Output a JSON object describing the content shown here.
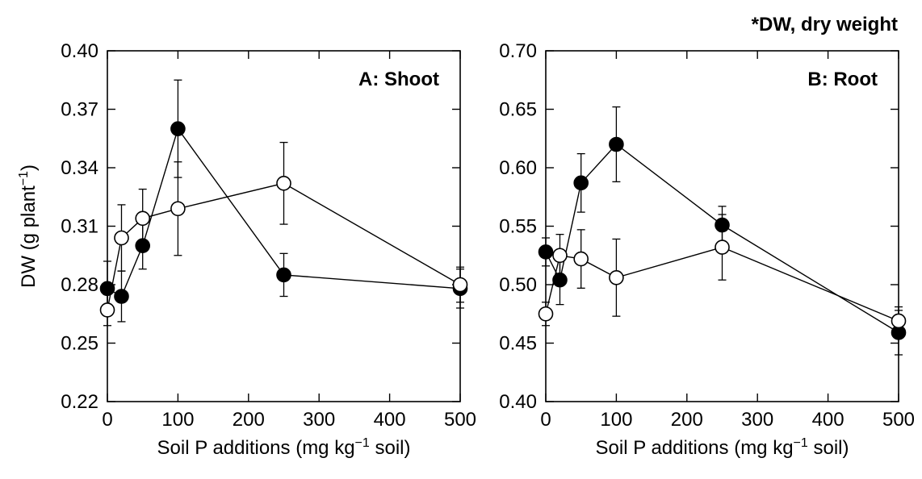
{
  "note": "*DW, dry weight",
  "colors": {
    "axis": "#000000",
    "filled_marker": "#000000",
    "open_marker": "#ffffff"
  },
  "chart_data": [
    {
      "type": "line",
      "panel_label": "A: Shoot",
      "xlabel": "Soil P additions (mg kg−1 soil)",
      "xlabel_main": "Soil P additions (mg kg",
      "xlabel_sup": "−1",
      "xlabel_tail": " soil)",
      "ylabel": "DW (g plant−1)",
      "ylabel_main": "DW (g plant",
      "ylabel_sup": "−1",
      "ylabel_tail": ")",
      "xlim": [
        0,
        500
      ],
      "ylim": [
        0.22,
        0.4
      ],
      "xticks": [
        0,
        100,
        200,
        300,
        400,
        500
      ],
      "yticks": [
        0.22,
        0.25,
        0.28,
        0.31,
        0.34,
        0.37,
        0.4
      ],
      "ytick_labels": [
        "0.22",
        "0.25",
        "0.28",
        "0.31",
        "0.34",
        "0.37",
        "0.40"
      ],
      "series": [
        {
          "marker": "filled",
          "x": [
            0,
            20,
            50,
            100,
            250,
            500
          ],
          "y": [
            0.278,
            0.274,
            0.3,
            0.36,
            0.285,
            0.278
          ],
          "err": [
            0.014,
            0.013,
            0.012,
            0.025,
            0.011,
            0.01
          ]
        },
        {
          "marker": "open",
          "x": [
            0,
            20,
            50,
            100,
            250,
            500
          ],
          "y": [
            0.267,
            0.304,
            0.314,
            0.319,
            0.332,
            0.28
          ],
          "err": [
            0.008,
            0.017,
            0.015,
            0.024,
            0.021,
            0.009
          ]
        }
      ]
    },
    {
      "type": "line",
      "panel_label": "B: Root",
      "xlabel": "Soil P additions (mg kg−1 soil)",
      "xlabel_main": "Soil P additions (mg kg",
      "xlabel_sup": "−1",
      "xlabel_tail": " soil)",
      "ylabel": "",
      "xlim": [
        0,
        500
      ],
      "ylim": [
        0.4,
        0.7
      ],
      "xticks": [
        0,
        100,
        200,
        300,
        400,
        500
      ],
      "yticks": [
        0.4,
        0.45,
        0.5,
        0.55,
        0.6,
        0.65,
        0.7
      ],
      "ytick_labels": [
        "0.40",
        "0.45",
        "0.50",
        "0.55",
        "0.60",
        "0.65",
        "0.70"
      ],
      "series": [
        {
          "marker": "filled",
          "x": [
            0,
            20,
            50,
            100,
            250,
            500
          ],
          "y": [
            0.528,
            0.504,
            0.587,
            0.62,
            0.551,
            0.459
          ],
          "err": [
            0.012,
            0.021,
            0.025,
            0.032,
            0.016,
            0.019
          ]
        },
        {
          "marker": "open",
          "x": [
            0,
            20,
            50,
            100,
            250,
            500
          ],
          "y": [
            0.475,
            0.525,
            0.522,
            0.506,
            0.532,
            0.469
          ],
          "err": [
            0.01,
            0.018,
            0.025,
            0.033,
            0.028,
            0.012
          ]
        }
      ]
    }
  ]
}
